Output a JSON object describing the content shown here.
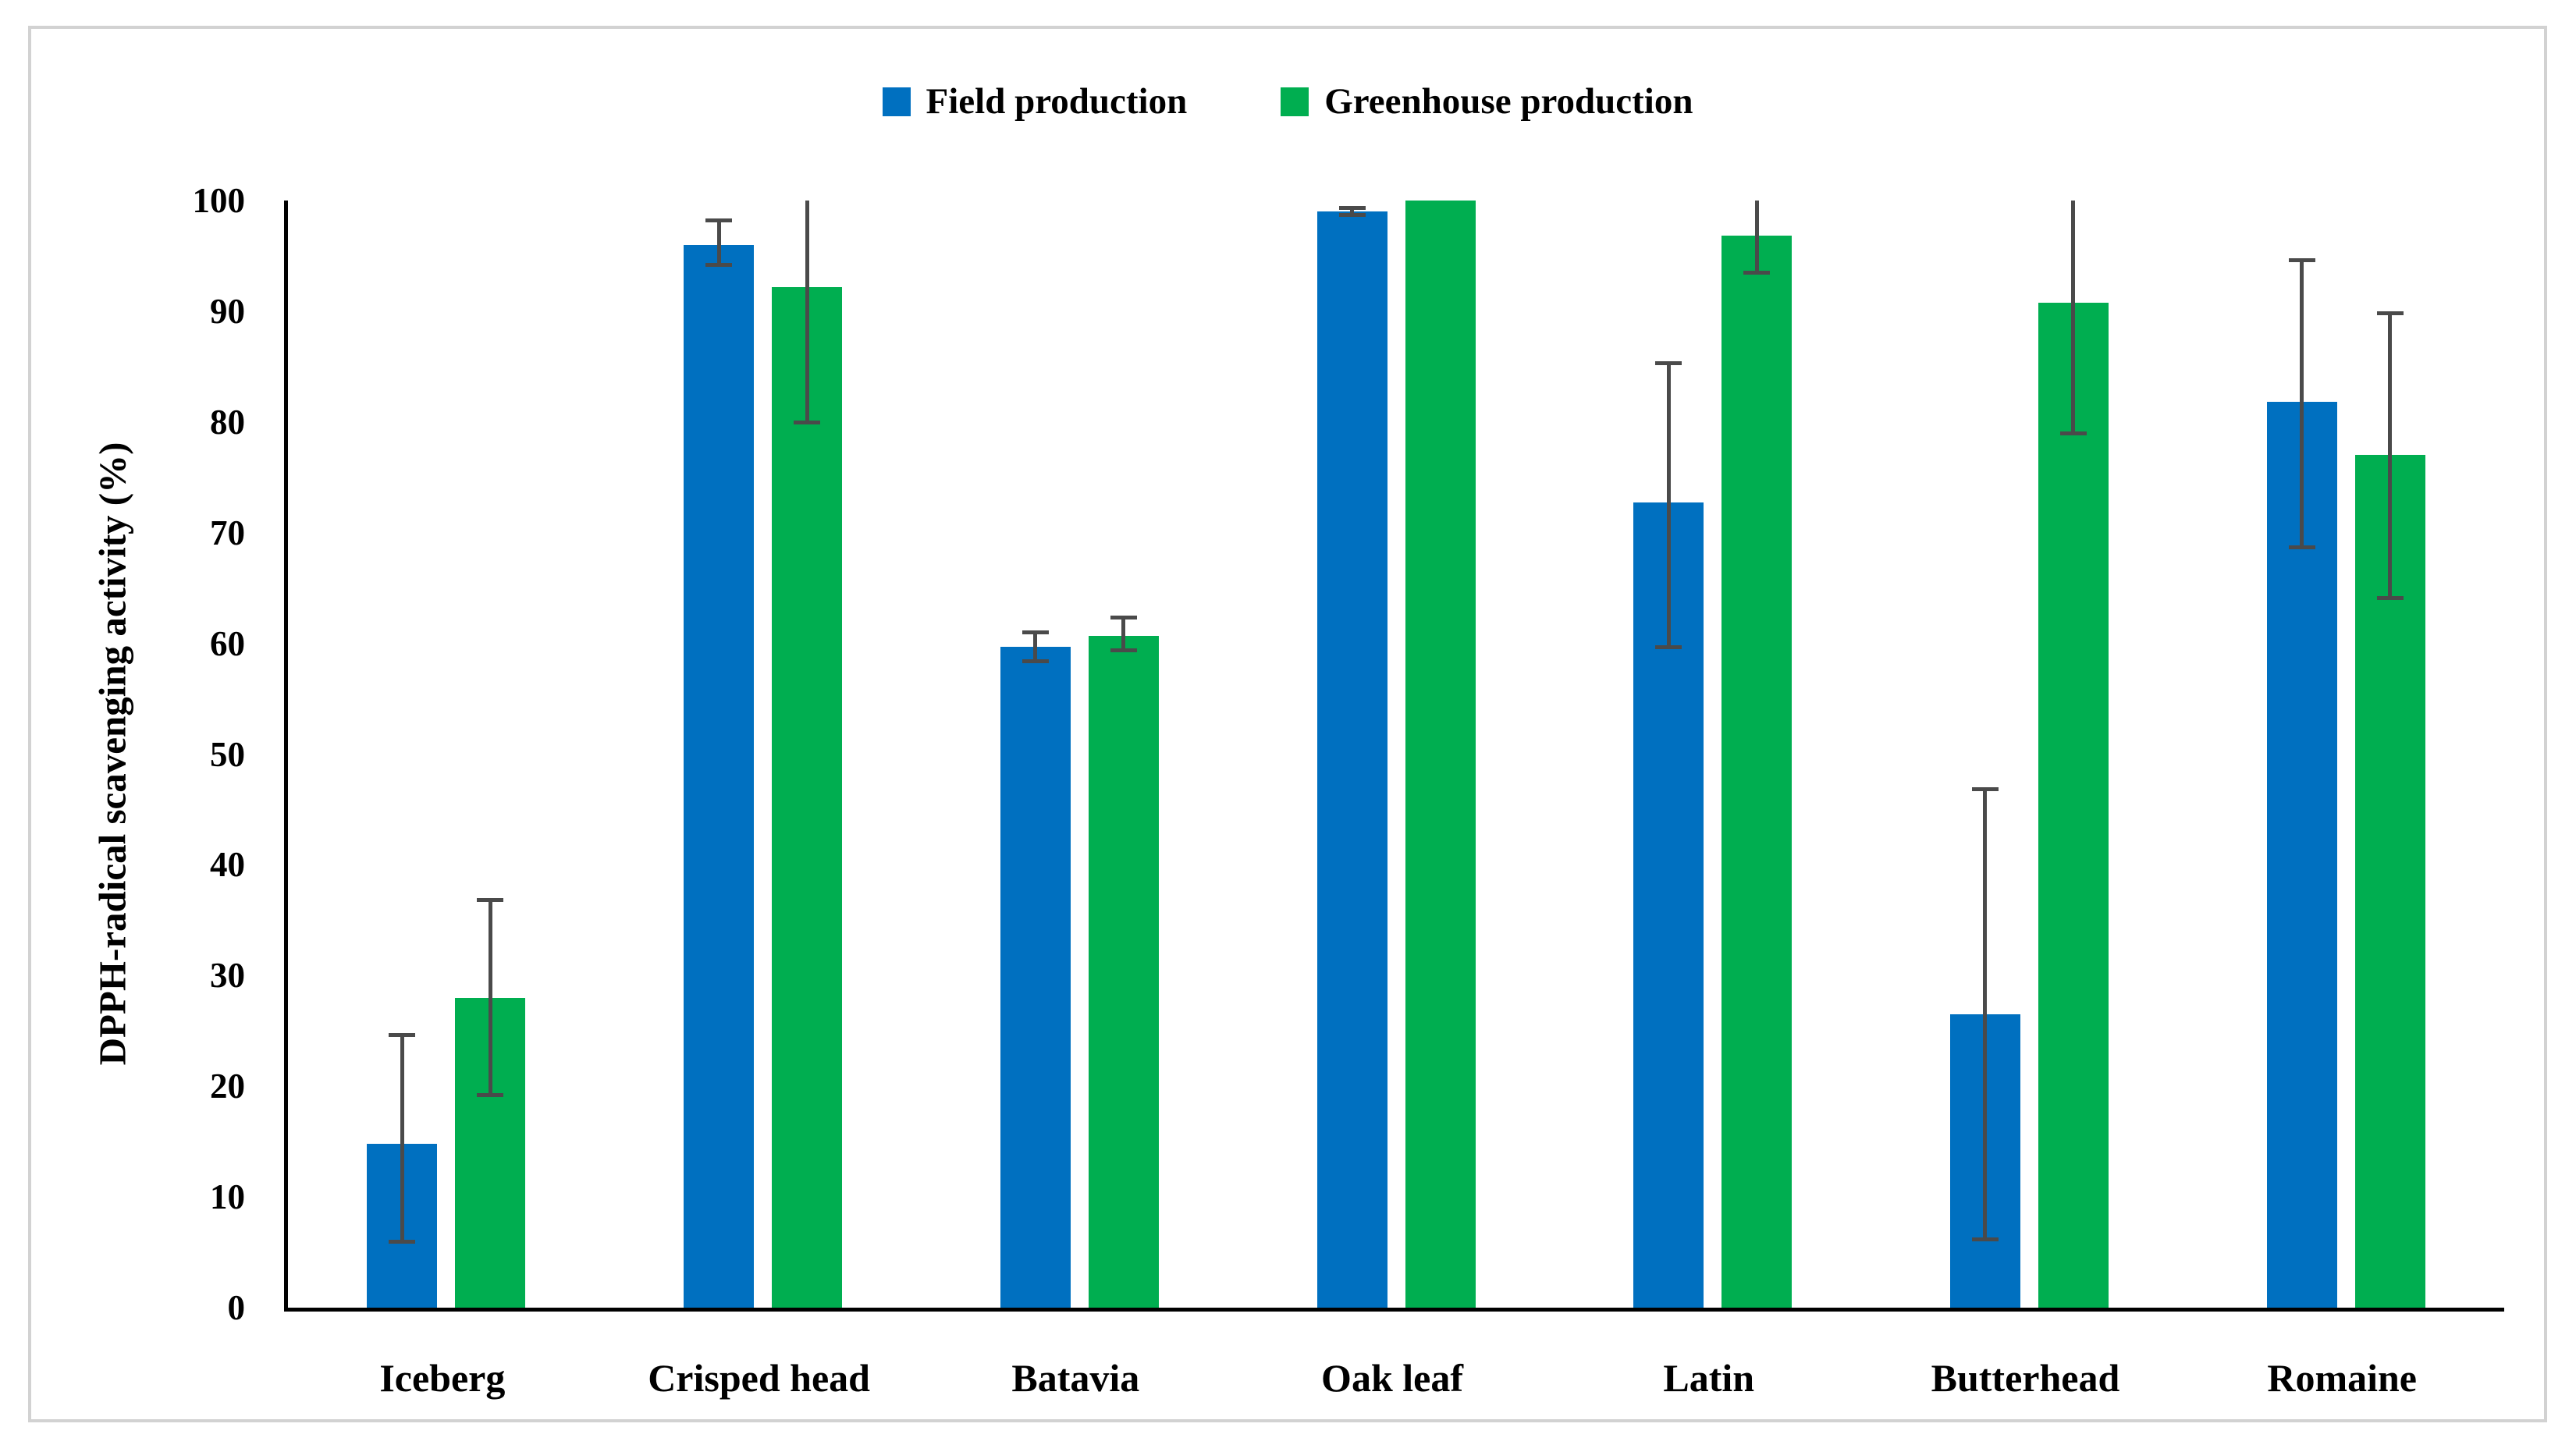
{
  "legend": {
    "items": [
      {
        "label": "Field production",
        "color": "#0070c0"
      },
      {
        "label": "Greenhouse production",
        "color": "#00ae50"
      }
    ]
  },
  "chart_data": {
    "type": "bar",
    "title": "",
    "xlabel": "",
    "ylabel": "DPPH-radical scavenging activity (%)",
    "ylim": [
      0,
      100
    ],
    "yticks": [
      0,
      10,
      20,
      30,
      40,
      50,
      60,
      70,
      80,
      90,
      100
    ],
    "grid": false,
    "legend_position": "top-center",
    "error_bar_color": "#4a4a4a",
    "axis_color": "#000000",
    "categories": [
      "Iceberg",
      "Crisped head",
      "Batavia",
      "Oak leaf",
      "Latin",
      "Butterhead",
      "Romaine"
    ],
    "series": [
      {
        "name": "Field production",
        "color": "#0070c0",
        "values": [
          14.8,
          96.0,
          59.7,
          99.0,
          72.7,
          26.5,
          81.8
        ],
        "error_up": [
          10.0,
          2.4,
          1.5,
          0.5,
          12.8,
          20.5,
          13.0
        ],
        "error_down": [
          9.0,
          2.0,
          1.5,
          0.5,
          13.2,
          20.5,
          13.3
        ],
        "cap_top": [
          true,
          true,
          true,
          true,
          true,
          true,
          true
        ]
      },
      {
        "name": "Greenhouse production",
        "color": "#00ae50",
        "values": [
          28.0,
          92.2,
          60.7,
          100.0,
          96.8,
          90.8,
          77.0
        ],
        "error_up": [
          9.0,
          7.8,
          1.8,
          0,
          3.2,
          9.2,
          13.0
        ],
        "error_down": [
          9.0,
          12.4,
          1.5,
          0,
          3.5,
          12.0,
          13.1
        ],
        "cap_top": [
          true,
          false,
          true,
          false,
          false,
          false,
          true
        ]
      }
    ]
  }
}
